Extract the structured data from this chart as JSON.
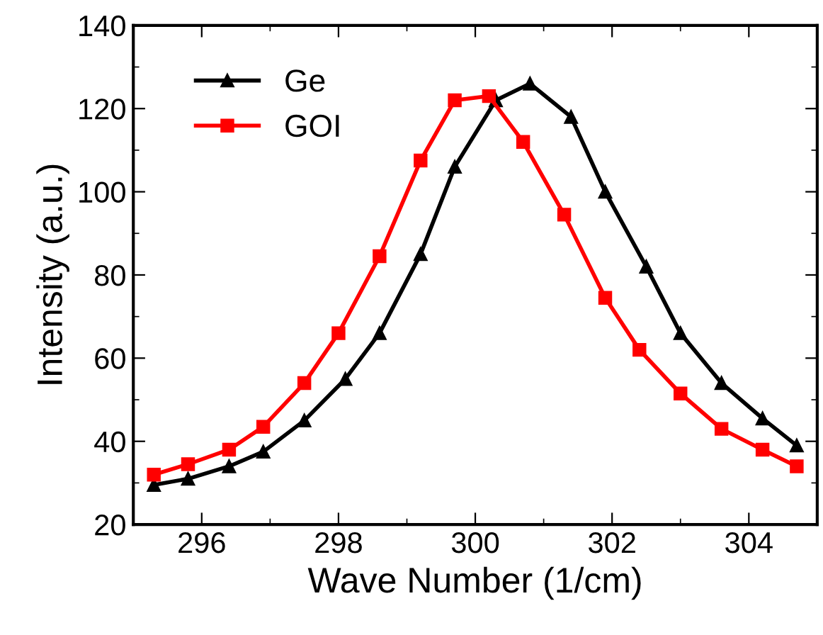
{
  "chart_data": {
    "type": "line",
    "xlabel": "Wave Number (1/cm)",
    "ylabel": "Intensity (a.u.)",
    "xlim": [
      295,
      305
    ],
    "xticks": [
      296,
      298,
      300,
      302,
      304
    ],
    "ylim": [
      20,
      140
    ],
    "yticks": [
      20,
      40,
      60,
      80,
      100,
      120,
      140
    ],
    "grid": false,
    "legend": "top left",
    "line_style": "solid",
    "series": [
      {
        "name": "Ge",
        "color": "#000000",
        "marker": "triangle",
        "x": [
          295.3,
          295.8,
          296.4,
          296.9,
          297.5,
          298.1,
          298.6,
          299.2,
          299.7,
          300.3,
          300.8,
          301.4,
          301.9,
          302.5,
          303.0,
          303.6,
          304.2,
          304.7
        ],
        "values": [
          29.5,
          31,
          34,
          37.5,
          45,
          55,
          66,
          85,
          106,
          122,
          126,
          118,
          100,
          82,
          66,
          54,
          45.5,
          39
        ]
      },
      {
        "name": "GOI",
        "color": "#ff0000",
        "marker": "square",
        "x": [
          295.3,
          295.8,
          296.4,
          296.9,
          297.5,
          298.0,
          298.6,
          299.2,
          299.7,
          300.2,
          300.7,
          301.3,
          301.9,
          302.4,
          303.0,
          303.6,
          304.2,
          304.7
        ],
        "values": [
          32,
          34.5,
          38,
          43.5,
          54,
          66,
          84.5,
          107.5,
          122,
          123,
          112,
          94.5,
          74.5,
          62,
          51.5,
          43,
          38,
          34
        ]
      }
    ]
  }
}
